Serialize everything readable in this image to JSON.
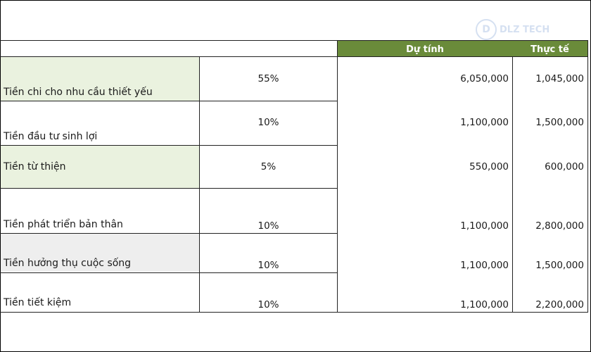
{
  "watermark": {
    "text": "DLZ TECH"
  },
  "header": {
    "col_budget": "Dự tính",
    "col_actual": "Thực tế"
  },
  "rows": [
    {
      "label": "Tiền chi cho nhu cầu thiết yếu",
      "percent": "55%",
      "budget": "6,050,000",
      "actual": "1,045,000"
    },
    {
      "label": "Tiền đầu tư sinh lợi",
      "percent": "10%",
      "budget": "1,100,000",
      "actual": "1,500,000"
    },
    {
      "label": "Tiền từ thiện",
      "percent": "5%",
      "budget": "550,000",
      "actual": "600,000"
    },
    {
      "label": "Tiền phát triển bản thân",
      "percent": "10%",
      "budget": "1,100,000",
      "actual": "2,800,000"
    },
    {
      "label": "Tiền  hưởng thụ cuộc sống",
      "percent": "10%",
      "budget": "1,100,000",
      "actual": "1,500,000"
    },
    {
      "label": "Tiền tiết kiệm",
      "percent": "10%",
      "budget": "1,100,000",
      "actual": "2,200,000"
    }
  ],
  "colors": {
    "header_bg": "#6a8b3a",
    "label_green": "#eaf2df",
    "label_gray": "#eeeeee"
  }
}
